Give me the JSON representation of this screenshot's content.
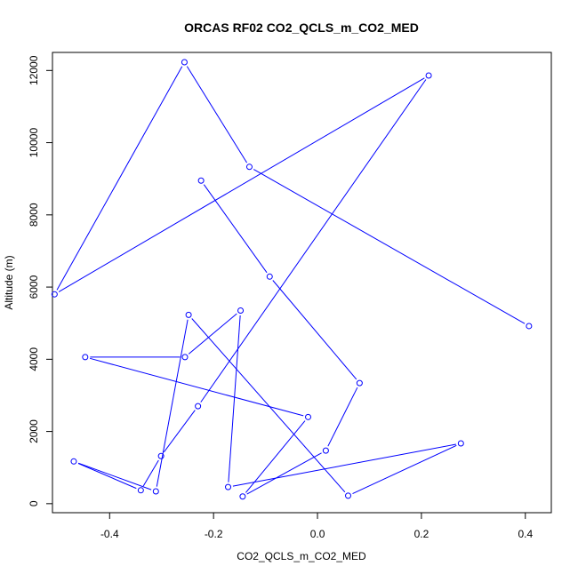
{
  "chart_data": {
    "type": "line",
    "title": "ORCAS RF02 CO2_QCLS_m_CO2_MED",
    "xlabel": "CO2_QCLS_m_CO2_MED",
    "ylabel": "Altitude (m)",
    "xlim": [
      -0.51,
      0.45
    ],
    "ylim": [
      -250,
      12500
    ],
    "x_ticks": [
      -0.4,
      -0.2,
      0.0,
      0.2,
      0.4
    ],
    "x_tick_labels": [
      "-0.4",
      "-0.2",
      "0.0",
      "0.2",
      "0.4"
    ],
    "y_ticks": [
      0,
      2000,
      4000,
      6000,
      8000,
      10000,
      12000
    ],
    "y_tick_labels": [
      "0",
      "2000",
      "4000",
      "6000",
      "8000",
      "10000",
      "12000"
    ],
    "grid": false,
    "legend": "none",
    "series": [
      {
        "color": "#0000ff",
        "marker": "open-circle",
        "points": [
          {
            "x": -0.224,
            "y": 8950
          },
          {
            "x": -0.092,
            "y": 6290
          },
          {
            "x": 0.081,
            "y": 3340
          },
          {
            "x": 0.016,
            "y": 1470
          },
          {
            "x": -0.144,
            "y": 200
          },
          {
            "x": -0.018,
            "y": 2400
          },
          {
            "x": -0.447,
            "y": 4060
          },
          {
            "x": -0.255,
            "y": 4060
          },
          {
            "x": -0.148,
            "y": 5350
          },
          {
            "x": -0.172,
            "y": 460
          },
          {
            "x": 0.276,
            "y": 1670
          },
          {
            "x": 0.059,
            "y": 220
          },
          {
            "x": -0.248,
            "y": 5230
          },
          {
            "x": -0.311,
            "y": 340
          },
          {
            "x": -0.469,
            "y": 1170
          },
          {
            "x": -0.34,
            "y": 370
          },
          {
            "x": -0.301,
            "y": 1320
          },
          {
            "x": -0.23,
            "y": 2700
          },
          {
            "x": 0.214,
            "y": 11860
          },
          {
            "x": -0.506,
            "y": 5800
          },
          {
            "x": -0.256,
            "y": 12230
          },
          {
            "x": -0.131,
            "y": 9330
          },
          {
            "x": 0.407,
            "y": 4920
          }
        ]
      }
    ]
  }
}
